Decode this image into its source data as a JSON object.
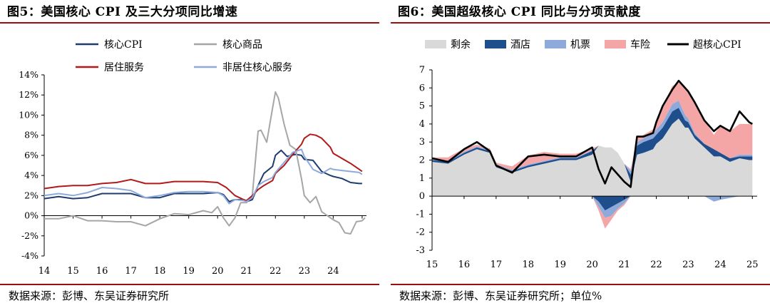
{
  "chart_data": [
    {
      "type": "line",
      "title": "图5：美国核心 CPI 及三大分项同比增速",
      "source": "数据来源：彭博、东吴证券研究所",
      "y_ticks": [
        "14%",
        "12%",
        "10%",
        "8%",
        "6%",
        "4%",
        "2%",
        "0%",
        "-2%",
        "-4%"
      ],
      "ylim": [
        -4,
        14
      ],
      "x_ticks": [
        "14",
        "15",
        "16",
        "17",
        "18",
        "19",
        "20",
        "21",
        "22",
        "23",
        "24"
      ],
      "xlim": [
        2014.0,
        2025.15
      ],
      "legend": [
        {
          "label": "核心CPI",
          "color": "#1f3c6e"
        },
        {
          "label": "核心商品",
          "color": "#a6a6a6"
        },
        {
          "label": "居住服务",
          "color": "#b01a1a"
        },
        {
          "label": "非居住核心服务",
          "color": "#8eaadb"
        }
      ],
      "series": [
        {
          "name": "核心CPI",
          "color": "#1f3c6e",
          "width": 2.0,
          "x": [
            2014.0,
            2014.5,
            2015.0,
            2015.5,
            2016.0,
            2016.5,
            2017.0,
            2017.5,
            2018.0,
            2018.5,
            2019.0,
            2019.5,
            2020.0,
            2020.2,
            2020.4,
            2020.6,
            2020.9,
            2021.0,
            2021.2,
            2021.4,
            2021.6,
            2021.9,
            2022.0,
            2022.2,
            2022.4,
            2022.7,
            2022.9,
            2023.0,
            2023.3,
            2023.6,
            2023.9,
            2024.0,
            2024.3,
            2024.6,
            2024.9,
            2025.0
          ],
          "y": [
            1.7,
            1.9,
            1.7,
            1.8,
            2.2,
            2.2,
            2.2,
            1.8,
            1.8,
            2.2,
            2.2,
            2.2,
            2.3,
            2.1,
            1.4,
            1.6,
            1.6,
            1.4,
            1.6,
            3.0,
            4.2,
            4.9,
            6.0,
            6.5,
            5.9,
            6.1,
            6.0,
            5.6,
            5.5,
            4.4,
            4.0,
            3.9,
            3.7,
            3.3,
            3.2,
            3.2
          ]
        },
        {
          "name": "核心商品",
          "color": "#a6a6a6",
          "width": 2.0,
          "x": [
            2014.0,
            2014.5,
            2015.0,
            2015.5,
            2016.0,
            2016.5,
            2017.0,
            2017.5,
            2018.0,
            2018.5,
            2019.0,
            2019.5,
            2019.8,
            2020.0,
            2020.2,
            2020.4,
            2020.6,
            2020.8,
            2021.0,
            2021.2,
            2021.4,
            2021.5,
            2021.7,
            2021.9,
            2022.0,
            2022.1,
            2022.3,
            2022.5,
            2022.7,
            2022.9,
            2023.0,
            2023.2,
            2023.4,
            2023.6,
            2023.9,
            2024.0,
            2024.2,
            2024.4,
            2024.6,
            2024.8,
            2025.0,
            2025.1
          ],
          "y": [
            -0.3,
            -0.3,
            0.0,
            -0.5,
            -0.5,
            -0.6,
            -0.6,
            -1.0,
            -0.3,
            0.2,
            0.1,
            0.5,
            0.3,
            0.9,
            -0.2,
            -1.0,
            -0.2,
            1.3,
            1.3,
            2.0,
            8.4,
            8.5,
            7.3,
            10.7,
            12.3,
            11.7,
            9.1,
            7.0,
            6.6,
            3.7,
            2.0,
            1.3,
            1.9,
            0.4,
            -0.2,
            -0.4,
            -0.7,
            -1.7,
            -1.8,
            -0.6,
            -0.5,
            -0.2
          ]
        },
        {
          "name": "居住服务",
          "color": "#b01a1a",
          "width": 2.0,
          "x": [
            2014.0,
            2014.5,
            2015.0,
            2015.5,
            2016.0,
            2016.5,
            2017.0,
            2017.5,
            2018.0,
            2018.5,
            2019.0,
            2019.5,
            2020.0,
            2020.3,
            2020.6,
            2020.9,
            2021.0,
            2021.2,
            2021.4,
            2021.6,
            2021.9,
            2022.0,
            2022.3,
            2022.6,
            2022.9,
            2023.0,
            2023.2,
            2023.4,
            2023.6,
            2023.9,
            2024.0,
            2024.3,
            2024.6,
            2024.9,
            2025.0
          ],
          "y": [
            2.7,
            2.9,
            3.0,
            3.0,
            3.2,
            3.3,
            3.6,
            3.2,
            3.2,
            3.4,
            3.4,
            3.4,
            3.3,
            2.8,
            2.0,
            1.6,
            1.5,
            2.0,
            2.6,
            3.0,
            3.5,
            4.2,
            5.0,
            6.1,
            7.1,
            7.7,
            8.1,
            8.0,
            7.7,
            6.8,
            6.2,
            5.7,
            5.2,
            4.6,
            4.4
          ]
        },
        {
          "name": "非居住核心服务",
          "color": "#8eaadb",
          "width": 2.0,
          "x": [
            2014.0,
            2014.5,
            2015.0,
            2015.5,
            2016.0,
            2016.5,
            2017.0,
            2017.5,
            2018.0,
            2018.5,
            2019.0,
            2019.5,
            2020.0,
            2020.2,
            2020.4,
            2020.6,
            2020.9,
            2021.0,
            2021.2,
            2021.4,
            2021.6,
            2021.9,
            2022.0,
            2022.3,
            2022.6,
            2022.9,
            2023.0,
            2023.3,
            2023.6,
            2023.9,
            2024.0,
            2024.3,
            2024.6,
            2024.9,
            2025.0
          ],
          "y": [
            2.0,
            2.2,
            2.0,
            2.3,
            2.8,
            2.7,
            2.5,
            1.8,
            2.0,
            2.3,
            2.4,
            2.4,
            2.3,
            2.0,
            1.2,
            1.6,
            1.5,
            1.4,
            1.8,
            3.0,
            3.4,
            3.8,
            4.3,
            5.3,
            6.3,
            6.6,
            5.9,
            4.6,
            4.2,
            4.7,
            4.6,
            4.5,
            4.4,
            4.3,
            4.1
          ]
        }
      ]
    },
    {
      "type": "area",
      "title": "图6：美国超级核心 CPI 同比与分项贡献度",
      "source": "数据来源：彭博、东吴证券研究所；单位%",
      "y_ticks": [
        "7",
        "6",
        "5",
        "4",
        "3",
        "2",
        "1",
        "0",
        "-1",
        "-2",
        "-3"
      ],
      "ylim": [
        -3,
        7
      ],
      "x_ticks": [
        "15",
        "16",
        "17",
        "18",
        "19",
        "20",
        "21",
        "22",
        "23",
        "24",
        "25"
      ],
      "xlim": [
        2015.0,
        2025.15
      ],
      "legend": [
        {
          "label": "剩余",
          "color": "#d9d9d9",
          "kind": "box"
        },
        {
          "label": "酒店",
          "color": "#1f4e8c",
          "kind": "box"
        },
        {
          "label": "机票",
          "color": "#8eaadb",
          "kind": "box"
        },
        {
          "label": "车险",
          "color": "#f4a6a6",
          "kind": "box"
        },
        {
          "label": "超核心CPI",
          "color": "#000000",
          "kind": "line"
        }
      ],
      "x": [
        2015.0,
        2015.5,
        2016.0,
        2016.4,
        2016.8,
        2017.0,
        2017.5,
        2018.0,
        2018.5,
        2019.0,
        2019.5,
        2020.0,
        2020.2,
        2020.4,
        2020.6,
        2020.8,
        2021.0,
        2021.2,
        2021.4,
        2021.6,
        2021.9,
        2022.0,
        2022.2,
        2022.5,
        2022.7,
        2022.9,
        2023.0,
        2023.2,
        2023.5,
        2023.8,
        2024.0,
        2024.3,
        2024.6,
        2024.9,
        2025.0
      ],
      "stack_series": [
        {
          "name": "剩余",
          "color": "#d9d9d9",
          "values": [
            1.9,
            1.8,
            2.3,
            2.6,
            2.4,
            1.6,
            1.3,
            1.6,
            1.8,
            2.0,
            2.0,
            2.3,
            2.8,
            2.7,
            2.7,
            2.4,
            1.8,
            0.8,
            2.3,
            2.4,
            2.6,
            2.9,
            3.2,
            4.0,
            4.3,
            3.8,
            3.8,
            3.2,
            2.7,
            2.2,
            2.2,
            1.9,
            2.1,
            2.0,
            2.0
          ]
        },
        {
          "name": "酒店",
          "color": "#1f4e8c",
          "values": [
            0.1,
            0.1,
            0.1,
            0.1,
            0.1,
            0.1,
            0.1,
            0.1,
            0.1,
            0.1,
            0.1,
            0.2,
            -0.3,
            -0.8,
            -0.6,
            -0.4,
            -0.2,
            0.4,
            0.5,
            0.6,
            0.6,
            0.5,
            0.6,
            0.7,
            0.6,
            0.4,
            0.3,
            0.2,
            0.2,
            0.4,
            0.2,
            0.2,
            0.1,
            0.2,
            0.2
          ]
        },
        {
          "name": "机票",
          "color": "#8eaadb",
          "values": [
            0.05,
            0.05,
            0.05,
            0.05,
            0.05,
            0.05,
            0.05,
            0.05,
            0.05,
            0.05,
            0.05,
            0.05,
            -0.3,
            -0.4,
            -0.5,
            -0.3,
            -0.2,
            0.2,
            0.2,
            0.2,
            0.3,
            0.3,
            0.3,
            0.4,
            0.4,
            0.3,
            0.2,
            0.1,
            0.0,
            -0.3,
            -0.2,
            -0.1,
            0.1,
            0.1,
            0.1
          ]
        },
        {
          "name": "车险",
          "color": "#f4a6a6",
          "values": [
            0.1,
            0.2,
            0.2,
            0.1,
            0.1,
            0.1,
            0.2,
            0.5,
            0.5,
            0.2,
            0.2,
            0.1,
            -0.2,
            -0.6,
            -0.2,
            -0.1,
            -0.1,
            0.1,
            0.2,
            0.2,
            0.2,
            0.5,
            0.9,
            1.0,
            1.0,
            1.5,
            1.6,
            1.7,
            1.3,
            0.8,
            1.5,
            1.5,
            1.7,
            1.7,
            1.7
          ]
        }
      ],
      "line_series": {
        "name": "超核心CPI",
        "color": "#000000",
        "values": [
          2.1,
          1.9,
          2.6,
          3.0,
          2.5,
          1.7,
          1.3,
          2.2,
          2.3,
          2.2,
          2.2,
          2.7,
          1.5,
          0.7,
          1.6,
          1.2,
          0.8,
          0.5,
          3.3,
          3.3,
          3.5,
          4.1,
          5.0,
          5.9,
          6.4,
          6.0,
          5.8,
          5.2,
          4.2,
          3.6,
          3.9,
          3.6,
          4.7,
          4.1,
          4.0
        ]
      }
    }
  ]
}
